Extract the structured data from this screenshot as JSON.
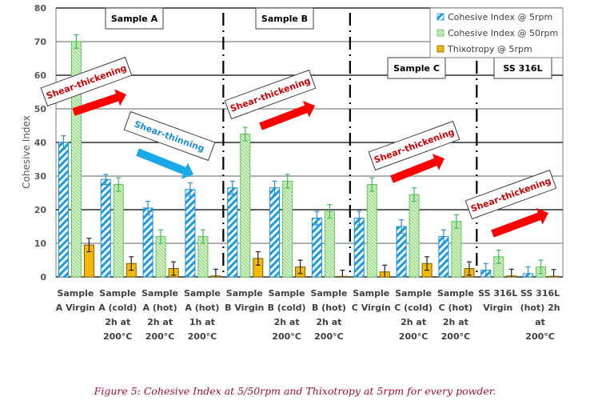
{
  "chart_data": {
    "type": "bar",
    "title": "",
    "xlabel": "",
    "ylabel": "Cohesive Index",
    "ylim": [
      0,
      80
    ],
    "yticks": [
      0,
      10,
      20,
      30,
      40,
      50,
      60,
      70,
      80
    ],
    "grid": true,
    "legend_position": "top-right",
    "categories": [
      [
        "Sample",
        "A Virgin"
      ],
      [
        "Sample",
        "A (cold)",
        "2h at",
        "200°C"
      ],
      [
        "Sample",
        "A (hot)",
        "2h at",
        "200°C"
      ],
      [
        "Sample",
        "A (hot)",
        "1h at",
        "200°C"
      ],
      [
        "Sample",
        "B Virgin"
      ],
      [
        "Sample",
        "B (cold)",
        "2h at",
        "200°C"
      ],
      [
        "Sample",
        "B (hot)",
        "2h at",
        "200°C"
      ],
      [
        "Sample",
        "C Virgin"
      ],
      [
        "Sample",
        "C (cold)",
        "2h at",
        "200°C"
      ],
      [
        "Sample",
        "C (hot)",
        "2h at",
        "200°C"
      ],
      [
        "SS 316L",
        "Virgin"
      ],
      [
        "SS 316L",
        "(hot) 2h",
        "at",
        "200°C"
      ]
    ],
    "series": [
      {
        "name": "Cohesive Index @ 5rpm",
        "color": "#1a9ae0",
        "pattern": "diagonal-stripes",
        "values": [
          40,
          29,
          20.5,
          26,
          26.5,
          26.5,
          17.5,
          17.5,
          15,
          12,
          2,
          1
        ],
        "errors": [
          2,
          1.5,
          2,
          2,
          2,
          2,
          2,
          2,
          2,
          2,
          2,
          2
        ]
      },
      {
        "name": "Cohesive Index @ 50rpm",
        "color": "#5cc85c",
        "pattern": "fine-hatch",
        "values": [
          70,
          27.5,
          12,
          12,
          42.5,
          28.5,
          19.5,
          27.5,
          24.5,
          16.5,
          6,
          3
        ],
        "errors": [
          2,
          2,
          2,
          2,
          2,
          2,
          2,
          2,
          2,
          2,
          2,
          2
        ]
      },
      {
        "name": "Thixotropy @ 5rpm",
        "color": "#f5b800",
        "pattern": "solid",
        "values": [
          9.5,
          4,
          2.5,
          0.3,
          5.5,
          3,
          0,
          1.5,
          4,
          2.5,
          0.3,
          0.2
        ],
        "errors": [
          2,
          2,
          2,
          2,
          2,
          2,
          2,
          2,
          2,
          2,
          2,
          2
        ]
      }
    ],
    "group_labels": [
      "Sample A",
      "Sample B",
      "Sample C",
      "SS 316L"
    ],
    "annotations": [
      {
        "text": "Shear-thickening",
        "color": "#cc0000",
        "arrow_color": "#ff0000",
        "direction": "up-right"
      },
      {
        "text": "Shear-thinning",
        "color": "#1a8fd8",
        "arrow_color": "#1aa9e8",
        "direction": "down-right"
      },
      {
        "text": "Shear-thickening",
        "color": "#cc0000",
        "arrow_color": "#ff0000",
        "direction": "up-right"
      },
      {
        "text": "Shear-thickening",
        "color": "#cc0000",
        "arrow_color": "#ff0000",
        "direction": "up-right"
      },
      {
        "text": "Shear-thickening",
        "color": "#cc0000",
        "arrow_color": "#ff0000",
        "direction": "up-right"
      }
    ]
  },
  "caption": "Figure 5: Cohesive Index at 5/50rpm and Thixotropy at 5rpm for every powder."
}
